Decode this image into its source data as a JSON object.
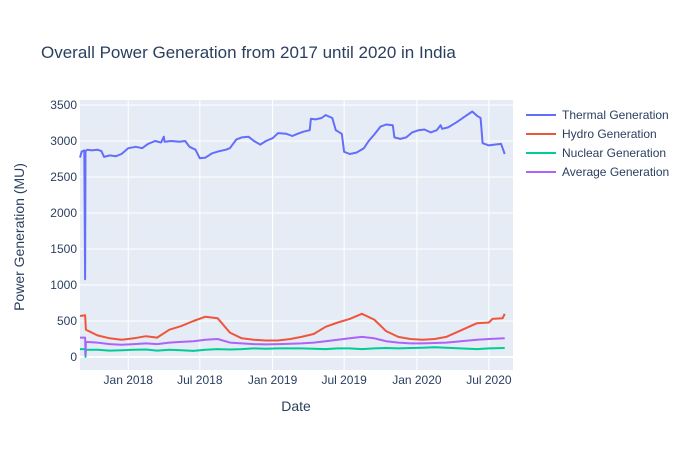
{
  "chart_data": {
    "type": "line",
    "title": "Overall Power Generation from 2017 until 2020 in India",
    "xlabel": "Date",
    "ylabel": "Power Generation (MU)",
    "xlim": [
      "2017-09-01",
      "2020-08-31"
    ],
    "ylim": [
      -180,
      3570
    ],
    "x_ticks": [
      {
        "date": "2018-01-01",
        "label": "Jan 2018"
      },
      {
        "date": "2018-07-01",
        "label": "Jul 2018"
      },
      {
        "date": "2019-01-01",
        "label": "Jan 2019"
      },
      {
        "date": "2019-07-01",
        "label": "Jul 2019"
      },
      {
        "date": "2020-01-01",
        "label": "Jan 2020"
      },
      {
        "date": "2020-07-01",
        "label": "Jul 2020"
      }
    ],
    "y_ticks": [
      0,
      500,
      1000,
      1500,
      2000,
      2500,
      3000,
      3500
    ],
    "grid": true,
    "legend_position": "right",
    "background": "#E5ECF6",
    "series": [
      {
        "name": "Thermal Generation",
        "color": "#636EFA",
        "points": [
          [
            "2017-09-01",
            2770
          ],
          [
            "2017-09-05",
            2850
          ],
          [
            "2017-09-12",
            2870
          ],
          [
            "2017-09-14",
            1080
          ],
          [
            "2017-09-15",
            2860
          ],
          [
            "2017-09-20",
            2880
          ],
          [
            "2017-10-01",
            2870
          ],
          [
            "2017-10-15",
            2880
          ],
          [
            "2017-10-25",
            2860
          ],
          [
            "2017-11-01",
            2780
          ],
          [
            "2017-11-15",
            2800
          ],
          [
            "2017-12-01",
            2790
          ],
          [
            "2017-12-15",
            2820
          ],
          [
            "2018-01-01",
            2900
          ],
          [
            "2018-01-20",
            2920
          ],
          [
            "2018-02-05",
            2900
          ],
          [
            "2018-02-20",
            2960
          ],
          [
            "2018-03-10",
            3000
          ],
          [
            "2018-03-25",
            2980
          ],
          [
            "2018-04-01",
            3060
          ],
          [
            "2018-04-03",
            2990
          ],
          [
            "2018-04-20",
            3000
          ],
          [
            "2018-05-10",
            2990
          ],
          [
            "2018-05-25",
            3000
          ],
          [
            "2018-06-05",
            2920
          ],
          [
            "2018-06-20",
            2880
          ],
          [
            "2018-07-01",
            2760
          ],
          [
            "2018-07-15",
            2770
          ],
          [
            "2018-08-01",
            2830
          ],
          [
            "2018-08-20",
            2860
          ],
          [
            "2018-09-05",
            2880
          ],
          [
            "2018-09-15",
            2900
          ],
          [
            "2018-10-01",
            3020
          ],
          [
            "2018-10-15",
            3050
          ],
          [
            "2018-11-01",
            3060
          ],
          [
            "2018-11-15",
            3000
          ],
          [
            "2018-12-01",
            2950
          ],
          [
            "2018-12-15",
            3000
          ],
          [
            "2019-01-01",
            3040
          ],
          [
            "2019-01-15",
            3110
          ],
          [
            "2019-02-05",
            3100
          ],
          [
            "2019-02-20",
            3070
          ],
          [
            "2019-03-05",
            3100
          ],
          [
            "2019-03-20",
            3130
          ],
          [
            "2019-04-05",
            3150
          ],
          [
            "2019-04-08",
            3310
          ],
          [
            "2019-04-20",
            3300
          ],
          [
            "2019-05-05",
            3320
          ],
          [
            "2019-05-15",
            3360
          ],
          [
            "2019-06-01",
            3320
          ],
          [
            "2019-06-10",
            3150
          ],
          [
            "2019-06-25",
            3100
          ],
          [
            "2019-07-01",
            2850
          ],
          [
            "2019-07-15",
            2820
          ],
          [
            "2019-08-01",
            2840
          ],
          [
            "2019-08-20",
            2900
          ],
          [
            "2019-09-01",
            3000
          ],
          [
            "2019-09-15",
            3090
          ],
          [
            "2019-10-01",
            3200
          ],
          [
            "2019-10-15",
            3230
          ],
          [
            "2019-11-01",
            3220
          ],
          [
            "2019-11-05",
            3050
          ],
          [
            "2019-11-20",
            3030
          ],
          [
            "2019-12-05",
            3050
          ],
          [
            "2019-12-20",
            3120
          ],
          [
            "2020-01-05",
            3150
          ],
          [
            "2020-01-20",
            3160
          ],
          [
            "2020-02-05",
            3120
          ],
          [
            "2020-02-20",
            3150
          ],
          [
            "2020-03-01",
            3220
          ],
          [
            "2020-03-05",
            3170
          ],
          [
            "2020-03-20",
            3190
          ],
          [
            "2020-04-10",
            3260
          ],
          [
            "2020-05-01",
            3340
          ],
          [
            "2020-05-20",
            3410
          ],
          [
            "2020-06-01",
            3350
          ],
          [
            "2020-06-10",
            3320
          ],
          [
            "2020-06-15",
            2970
          ],
          [
            "2020-07-01",
            2940
          ],
          [
            "2020-07-15",
            2950
          ],
          [
            "2020-08-01",
            2960
          ],
          [
            "2020-08-10",
            2820
          ]
        ]
      },
      {
        "name": "Hydro Generation",
        "color": "#EF553B",
        "points": [
          [
            "2017-09-01",
            570
          ],
          [
            "2017-09-14",
            580
          ],
          [
            "2017-09-16",
            380
          ],
          [
            "2017-10-15",
            300
          ],
          [
            "2017-11-15",
            260
          ],
          [
            "2017-12-15",
            240
          ],
          [
            "2018-01-15",
            260
          ],
          [
            "2018-02-15",
            290
          ],
          [
            "2018-03-15",
            270
          ],
          [
            "2018-04-15",
            380
          ],
          [
            "2018-05-15",
            430
          ],
          [
            "2018-06-15",
            500
          ],
          [
            "2018-07-15",
            560
          ],
          [
            "2018-08-15",
            540
          ],
          [
            "2018-09-15",
            340
          ],
          [
            "2018-10-15",
            260
          ],
          [
            "2018-11-15",
            240
          ],
          [
            "2018-12-15",
            230
          ],
          [
            "2019-01-15",
            230
          ],
          [
            "2019-02-15",
            250
          ],
          [
            "2019-03-15",
            280
          ],
          [
            "2019-04-15",
            320
          ],
          [
            "2019-05-15",
            420
          ],
          [
            "2019-06-15",
            480
          ],
          [
            "2019-07-15",
            530
          ],
          [
            "2019-08-15",
            600
          ],
          [
            "2019-09-15",
            520
          ],
          [
            "2019-10-15",
            360
          ],
          [
            "2019-11-15",
            280
          ],
          [
            "2019-12-15",
            250
          ],
          [
            "2020-01-15",
            240
          ],
          [
            "2020-02-15",
            250
          ],
          [
            "2020-03-15",
            280
          ],
          [
            "2020-06-01",
            470
          ],
          [
            "2020-07-01",
            480
          ],
          [
            "2020-07-10",
            530
          ],
          [
            "2020-08-05",
            540
          ],
          [
            "2020-08-10",
            600
          ]
        ]
      },
      {
        "name": "Nuclear Generation",
        "color": "#00CC96",
        "points": [
          [
            "2017-09-01",
            110
          ],
          [
            "2017-09-14",
            110
          ],
          [
            "2017-09-15",
            0
          ],
          [
            "2017-09-16",
            100
          ],
          [
            "2017-10-15",
            100
          ],
          [
            "2017-11-15",
            90
          ],
          [
            "2017-12-15",
            95
          ],
          [
            "2018-01-15",
            100
          ],
          [
            "2018-02-15",
            105
          ],
          [
            "2018-03-15",
            90
          ],
          [
            "2018-04-15",
            100
          ],
          [
            "2018-05-15",
            95
          ],
          [
            "2018-06-15",
            85
          ],
          [
            "2018-07-15",
            100
          ],
          [
            "2018-08-15",
            110
          ],
          [
            "2018-09-15",
            105
          ],
          [
            "2018-10-15",
            110
          ],
          [
            "2018-11-15",
            120
          ],
          [
            "2018-12-15",
            115
          ],
          [
            "2019-01-15",
            120
          ],
          [
            "2019-02-15",
            120
          ],
          [
            "2019-03-15",
            120
          ],
          [
            "2019-04-15",
            115
          ],
          [
            "2019-05-15",
            110
          ],
          [
            "2019-06-15",
            120
          ],
          [
            "2019-07-15",
            120
          ],
          [
            "2019-08-15",
            110
          ],
          [
            "2019-09-15",
            120
          ],
          [
            "2019-10-15",
            125
          ],
          [
            "2019-11-15",
            120
          ],
          [
            "2019-12-15",
            125
          ],
          [
            "2020-01-15",
            130
          ],
          [
            "2020-02-15",
            135
          ],
          [
            "2020-03-15",
            130
          ],
          [
            "2020-06-01",
            110
          ],
          [
            "2020-07-01",
            120
          ],
          [
            "2020-08-10",
            125
          ]
        ]
      },
      {
        "name": "Average Generation",
        "color": "#AB63FA",
        "points": [
          [
            "2017-09-01",
            270
          ],
          [
            "2017-09-14",
            270
          ],
          [
            "2017-09-15",
            30
          ],
          [
            "2017-09-16",
            210
          ],
          [
            "2017-10-15",
            200
          ],
          [
            "2017-11-15",
            180
          ],
          [
            "2017-12-15",
            170
          ],
          [
            "2018-01-15",
            180
          ],
          [
            "2018-02-15",
            190
          ],
          [
            "2018-03-15",
            180
          ],
          [
            "2018-04-15",
            200
          ],
          [
            "2018-05-15",
            210
          ],
          [
            "2018-06-15",
            220
          ],
          [
            "2018-07-15",
            240
          ],
          [
            "2018-08-15",
            250
          ],
          [
            "2018-09-15",
            200
          ],
          [
            "2018-10-15",
            190
          ],
          [
            "2018-11-15",
            180
          ],
          [
            "2018-12-15",
            175
          ],
          [
            "2019-01-15",
            180
          ],
          [
            "2019-02-15",
            185
          ],
          [
            "2019-03-15",
            190
          ],
          [
            "2019-04-15",
            200
          ],
          [
            "2019-05-15",
            220
          ],
          [
            "2019-06-15",
            240
          ],
          [
            "2019-07-15",
            260
          ],
          [
            "2019-08-15",
            280
          ],
          [
            "2019-09-15",
            260
          ],
          [
            "2019-10-15",
            220
          ],
          [
            "2019-11-15",
            200
          ],
          [
            "2019-12-15",
            190
          ],
          [
            "2020-01-15",
            190
          ],
          [
            "2020-02-15",
            195
          ],
          [
            "2020-03-15",
            200
          ],
          [
            "2020-06-01",
            240
          ],
          [
            "2020-07-01",
            250
          ],
          [
            "2020-08-10",
            260
          ]
        ]
      }
    ]
  }
}
